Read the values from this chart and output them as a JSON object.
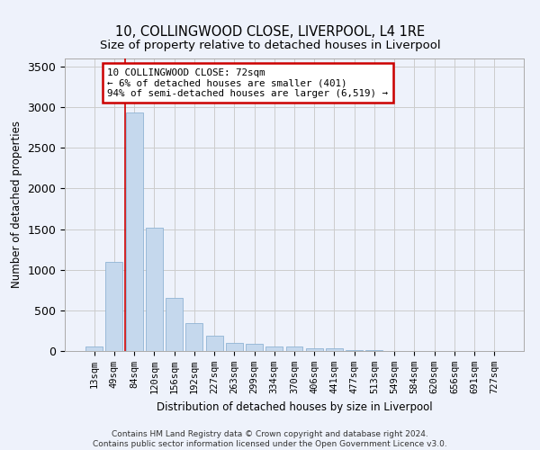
{
  "title1": "10, COLLINGWOOD CLOSE, LIVERPOOL, L4 1RE",
  "title2": "Size of property relative to detached houses in Liverpool",
  "xlabel": "Distribution of detached houses by size in Liverpool",
  "ylabel": "Number of detached properties",
  "categories": [
    "13sqm",
    "49sqm",
    "84sqm",
    "120sqm",
    "156sqm",
    "192sqm",
    "227sqm",
    "263sqm",
    "299sqm",
    "334sqm",
    "370sqm",
    "406sqm",
    "441sqm",
    "477sqm",
    "513sqm",
    "549sqm",
    "584sqm",
    "620sqm",
    "656sqm",
    "691sqm",
    "727sqm"
  ],
  "values": [
    50,
    1100,
    2930,
    1520,
    650,
    340,
    185,
    95,
    90,
    60,
    55,
    30,
    30,
    12,
    10,
    5,
    5,
    5,
    5,
    5,
    5
  ],
  "bar_color": "#c5d8ed",
  "bar_edge_color": "#8fb4d4",
  "grid_color": "#cccccc",
  "background_color": "#eef2fb",
  "annotation_line1": "10 COLLINGWOOD CLOSE: 72sqm",
  "annotation_line2": "← 6% of detached houses are smaller (401)",
  "annotation_line3": "94% of semi-detached houses are larger (6,519) →",
  "red_line_x": 1.55,
  "annotation_box_color": "#ffffff",
  "annotation_border_color": "#cc0000",
  "footer1": "Contains HM Land Registry data © Crown copyright and database right 2024.",
  "footer2": "Contains public sector information licensed under the Open Government Licence v3.0.",
  "ylim": [
    0,
    3600
  ],
  "yticks": [
    0,
    500,
    1000,
    1500,
    2000,
    2500,
    3000,
    3500
  ]
}
